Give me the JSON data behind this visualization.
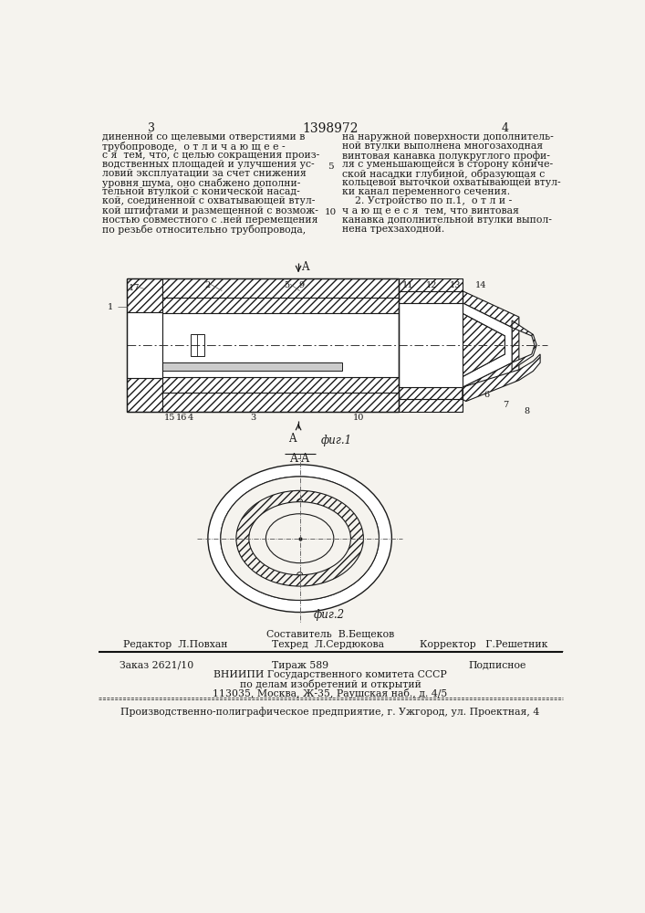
{
  "bg_color": "#f5f3ee",
  "page_number_left": "3",
  "page_number_center": "1398972",
  "page_number_right": "4",
  "text_left_col": [
    "диненной со щелевыми отверстиями в",
    "трубопроводе,  о т л и ч а ю щ е е -",
    "с я  тем, что, с целью сокращения произ-",
    "водственных площадей и улучшения ус-",
    "ловий эксплуатации за счет снижения",
    "уровня шума, оно снабжено дополни-",
    "тельной втулкой с конической насад-",
    "кой, соединенной с охватывающей втул-",
    "кой штифтами и размещенной с возмож-",
    "ностью совместного с .ней перемещения",
    "по резьбе относительно трубопровода,"
  ],
  "text_right_col": [
    "на наружной поверхности дополнитель-",
    "ной втулки выполнена многозаходная",
    "винтовая канавка полукруглого профи-",
    "ля с уменьшающейся в сторону кониче-",
    "ской насадки глубиной, образующая с",
    "кольцевой выточкой охватывающей втул-",
    "ки канал переменного сечения.",
    "    2. Устройство по п.1,  о т л и -",
    "ч а ю щ е е с я  тем, что винтовая",
    "канавка дополнительной втулки выпол-",
    "нена трехзаходной."
  ],
  "line_number_5": "5",
  "line_number_10": "10",
  "fig1_label": "фuг.1",
  "fig2_label": "фuг.2",
  "section_label": "A-A",
  "footer_line1_center": "Составитель  В.Бещеков",
  "footer_line2_left": "Редактор  Л.Повхан",
  "footer_line2_center": "Техред  Л.Сердюкова",
  "footer_line2_right": "Корректор   Г.Решетник",
  "footer_zakaz": "Заказ 2621/10",
  "footer_tirazh": "Тираж 589",
  "footer_podpisnoe": "Подписное",
  "footer_vniiipi": "ВНИИПИ Государственного комитета СССР",
  "footer_po_delam": "по делам изобретений и открытий",
  "footer_address": "113035, Москва, Ж-35, Раушская наб., д. 4/5",
  "footer_production": "Производственно-полиграфическое предприятие, г. Ужгород, ул. Проектная, 4"
}
